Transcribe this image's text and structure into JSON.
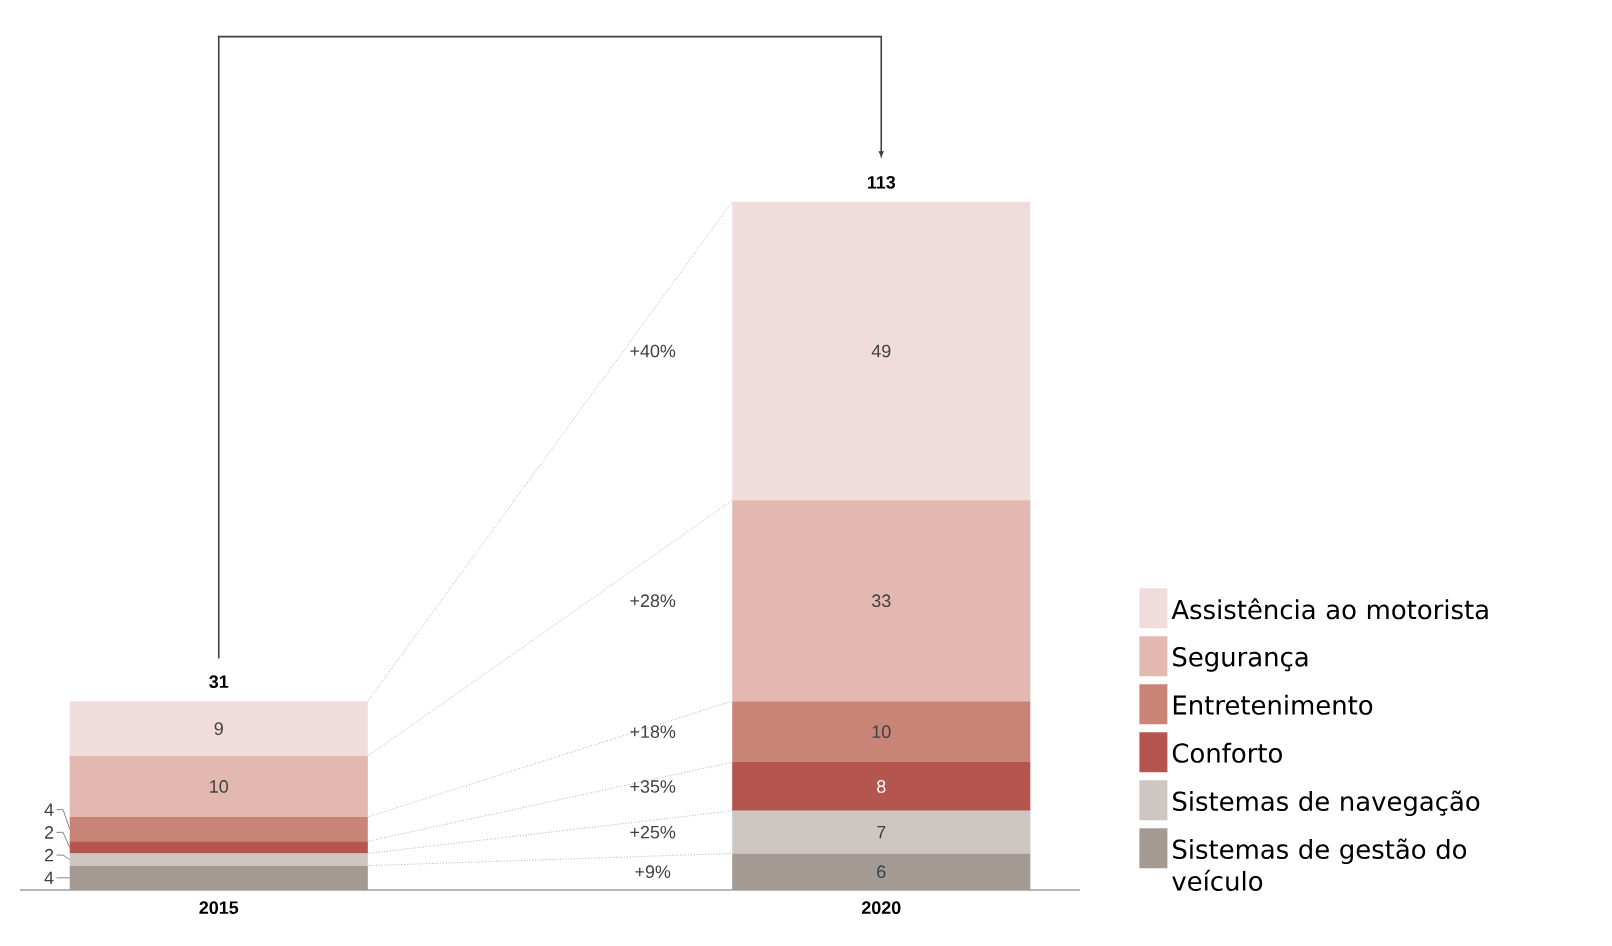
{
  "chart_data": {
    "type": "bar",
    "stacked": true,
    "categories": [
      "2015",
      "2020"
    ],
    "series": [
      {
        "name": "Sistemas de gestão do veículo",
        "color": "#a39a93",
        "values": [
          4,
          6
        ]
      },
      {
        "name": "Sistemas de navegação",
        "color": "#cdc6c3",
        "values": [
          2,
          7
        ]
      },
      {
        "name": "Conforto",
        "color": "#b5554f",
        "values": [
          2,
          8
        ]
      },
      {
        "name": "Entretenimento",
        "color": "#c98478",
        "values": [
          4,
          10
        ]
      },
      {
        "name": "Segurança",
        "color": "#e2b8b0",
        "values": [
          10,
          33
        ]
      },
      {
        "name": "Assistência ao motorista",
        "color": "#f0dcda",
        "values": [
          9,
          49
        ]
      }
    ],
    "data_labels": true,
    "totals": [
      "31",
      "113"
    ],
    "legend": "right",
    "annotations": [
      "+9%",
      "+25%",
      "+35%",
      "+18%",
      "+28%",
      "+40%"
    ]
  }
}
